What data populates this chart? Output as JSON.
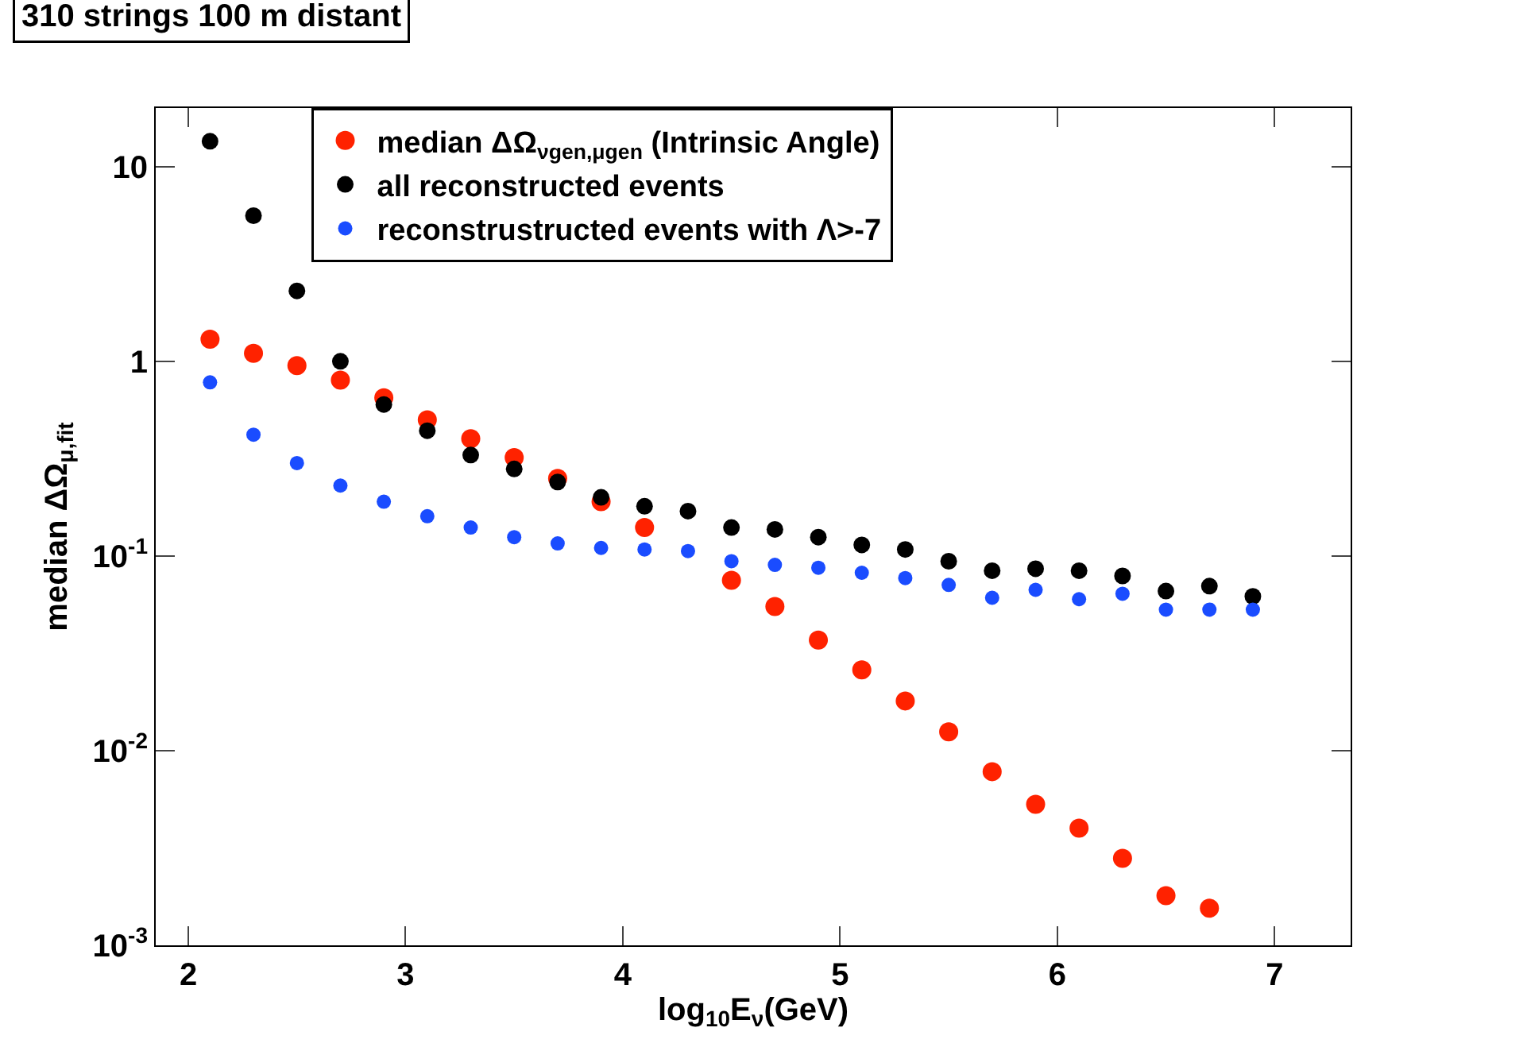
{
  "chart_data": {
    "type": "scatter",
    "title": "310 strings 100 m distant",
    "xlabel": "log$_{10}$E$_{ν}$(GeV)",
    "ylabel": "median ΔΩ$_{μ,fit}$",
    "x": [
      2.1,
      2.3,
      2.5,
      2.7,
      2.9,
      3.1,
      3.3,
      3.5,
      3.7,
      3.9,
      4.1,
      4.3,
      4.5,
      4.7,
      4.9,
      5.1,
      5.3,
      5.5,
      5.7,
      5.9,
      6.1,
      6.3,
      6.5,
      6.7,
      6.9
    ],
    "series": [
      {
        "name": "median ΔΩ$_{νgen,μgen}$ (Intrinsic Angle)",
        "color": "#ff2200",
        "values": [
          1.3,
          1.1,
          0.95,
          0.8,
          0.65,
          0.5,
          0.4,
          0.32,
          0.25,
          0.19,
          0.14,
          null,
          0.075,
          0.055,
          0.037,
          0.026,
          0.018,
          0.0125,
          0.0078,
          0.0053,
          0.004,
          0.0028,
          0.0018,
          0.00155,
          null
        ]
      },
      {
        "name": "all reconstructed events",
        "color": "#000000",
        "values": [
          13.5,
          5.6,
          2.3,
          1.0,
          0.6,
          0.44,
          0.33,
          0.28,
          0.24,
          0.2,
          0.18,
          0.17,
          0.14,
          0.137,
          0.125,
          0.114,
          0.108,
          0.094,
          0.084,
          0.086,
          0.084,
          0.079,
          0.066,
          0.07,
          0.062
        ]
      },
      {
        "name": "reconstrustructed events with Λ>-7",
        "color": "#1a4cff",
        "values": [
          0.78,
          0.42,
          0.3,
          0.23,
          0.19,
          0.16,
          0.14,
          0.125,
          0.116,
          0.11,
          0.108,
          0.106,
          0.094,
          0.09,
          0.087,
          0.082,
          0.077,
          0.071,
          0.061,
          0.067,
          0.06,
          0.064,
          0.053,
          0.053,
          0.053
        ]
      }
    ],
    "xlim": [
      1.85,
      7.35
    ],
    "xticks": [
      2,
      3,
      4,
      5,
      6,
      7
    ],
    "ylim": [
      0.001,
      20
    ],
    "log": true,
    "yticks": [
      {
        "value": 0.001,
        "label": "10$^{-3}$"
      },
      {
        "value": 0.01,
        "label": "10$^{-2}$"
      },
      {
        "value": 0.1,
        "label": "10$^{-1}$"
      },
      1,
      10
    ],
    "grid": false,
    "legend": "top",
    "marker": "circle"
  }
}
